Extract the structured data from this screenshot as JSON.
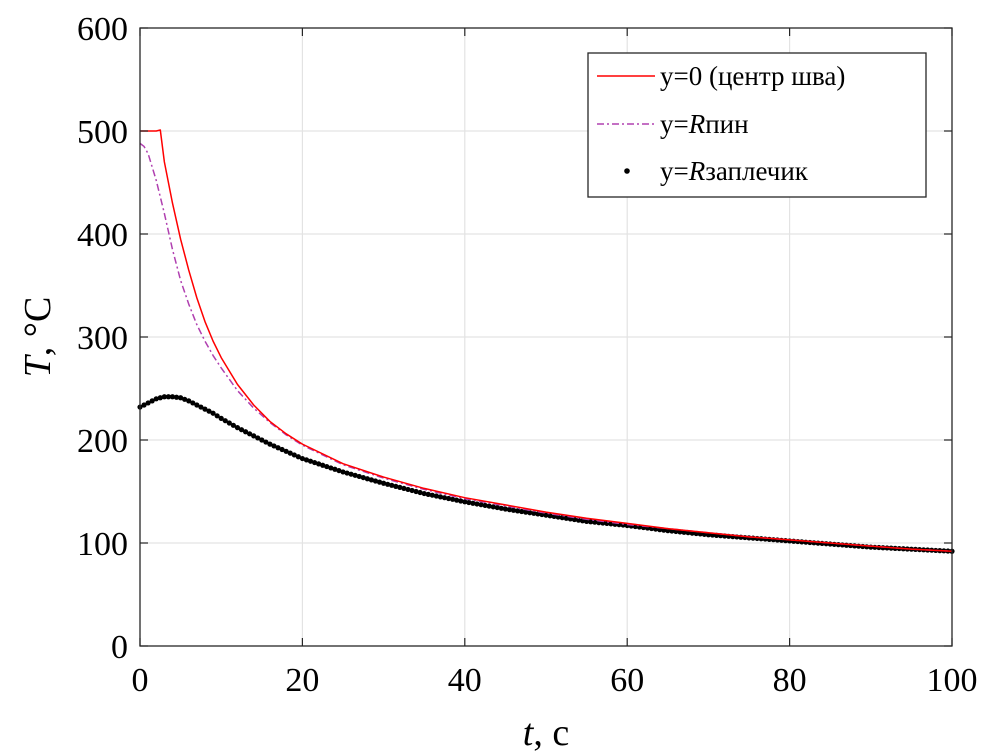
{
  "chart_data": {
    "type": "line",
    "xlim": [
      0,
      100
    ],
    "ylim": [
      0,
      600
    ],
    "x_ticks": [
      0,
      20,
      40,
      60,
      80,
      100
    ],
    "y_ticks": [
      0,
      100,
      200,
      300,
      400,
      500,
      600
    ],
    "grid": true,
    "xlabel": {
      "var": "t",
      "rest": ", с"
    },
    "ylabel": {
      "var": "T",
      "rest": ", °C"
    },
    "legend_position": "top-right",
    "series": [
      {
        "key": "center",
        "legend": {
          "pre": "y=0 (центр шва)",
          "var": "",
          "post": ""
        },
        "color": "#ff0000",
        "style": "solid",
        "points": [
          [
            0,
            500
          ],
          [
            1,
            500
          ],
          [
            2,
            500
          ],
          [
            2.5,
            501
          ],
          [
            3,
            470
          ],
          [
            4,
            430
          ],
          [
            5,
            395
          ],
          [
            6,
            365
          ],
          [
            7,
            338
          ],
          [
            8,
            315
          ],
          [
            9,
            296
          ],
          [
            10,
            280
          ],
          [
            12,
            254
          ],
          [
            14,
            234
          ],
          [
            16,
            218
          ],
          [
            18,
            206
          ],
          [
            20,
            196
          ],
          [
            25,
            177
          ],
          [
            30,
            164
          ],
          [
            35,
            153
          ],
          [
            40,
            144
          ],
          [
            45,
            137
          ],
          [
            50,
            130
          ],
          [
            55,
            124
          ],
          [
            60,
            119
          ],
          [
            65,
            114
          ],
          [
            70,
            110
          ],
          [
            75,
            106
          ],
          [
            80,
            103
          ],
          [
            85,
            100
          ],
          [
            90,
            97
          ],
          [
            95,
            94
          ],
          [
            100,
            92
          ]
        ]
      },
      {
        "key": "pin",
        "legend": {
          "pre": "y=",
          "var": "R",
          "post": "пин"
        },
        "color": "#b040b0",
        "style": "dashdot",
        "points": [
          [
            0,
            488
          ],
          [
            0.5,
            485
          ],
          [
            1,
            478
          ],
          [
            2,
            452
          ],
          [
            3,
            420
          ],
          [
            4,
            385
          ],
          [
            5,
            355
          ],
          [
            6,
            332
          ],
          [
            7,
            312
          ],
          [
            8,
            296
          ],
          [
            9,
            282
          ],
          [
            10,
            270
          ],
          [
            12,
            248
          ],
          [
            14,
            231
          ],
          [
            16,
            217
          ],
          [
            18,
            205
          ],
          [
            20,
            195
          ],
          [
            25,
            176
          ],
          [
            30,
            163
          ],
          [
            35,
            152
          ],
          [
            40,
            143
          ],
          [
            45,
            136
          ],
          [
            50,
            129
          ],
          [
            55,
            123
          ],
          [
            60,
            118
          ],
          [
            65,
            114
          ],
          [
            70,
            110
          ],
          [
            75,
            106
          ],
          [
            80,
            103
          ],
          [
            85,
            100
          ],
          [
            90,
            97
          ],
          [
            95,
            94
          ],
          [
            100,
            92
          ]
        ]
      },
      {
        "key": "shoulder",
        "legend": {
          "pre": "y=",
          "var": "R",
          "post": "заплечик"
        },
        "color": "#000000",
        "style": "dots",
        "points": [
          [
            0,
            232
          ],
          [
            1,
            236
          ],
          [
            2,
            240
          ],
          [
            3,
            242
          ],
          [
            4,
            242
          ],
          [
            5,
            241
          ],
          [
            6,
            238
          ],
          [
            7,
            234
          ],
          [
            8,
            230
          ],
          [
            9,
            226
          ],
          [
            10,
            221
          ],
          [
            12,
            212
          ],
          [
            14,
            204
          ],
          [
            16,
            196
          ],
          [
            18,
            189
          ],
          [
            20,
            182
          ],
          [
            25,
            169
          ],
          [
            30,
            158
          ],
          [
            35,
            148
          ],
          [
            40,
            140
          ],
          [
            45,
            133
          ],
          [
            50,
            127
          ],
          [
            55,
            121
          ],
          [
            60,
            117
          ],
          [
            65,
            112
          ],
          [
            70,
            108
          ],
          [
            75,
            105
          ],
          [
            80,
            102
          ],
          [
            85,
            99
          ],
          [
            90,
            96
          ],
          [
            95,
            94
          ],
          [
            100,
            92
          ]
        ]
      }
    ]
  }
}
